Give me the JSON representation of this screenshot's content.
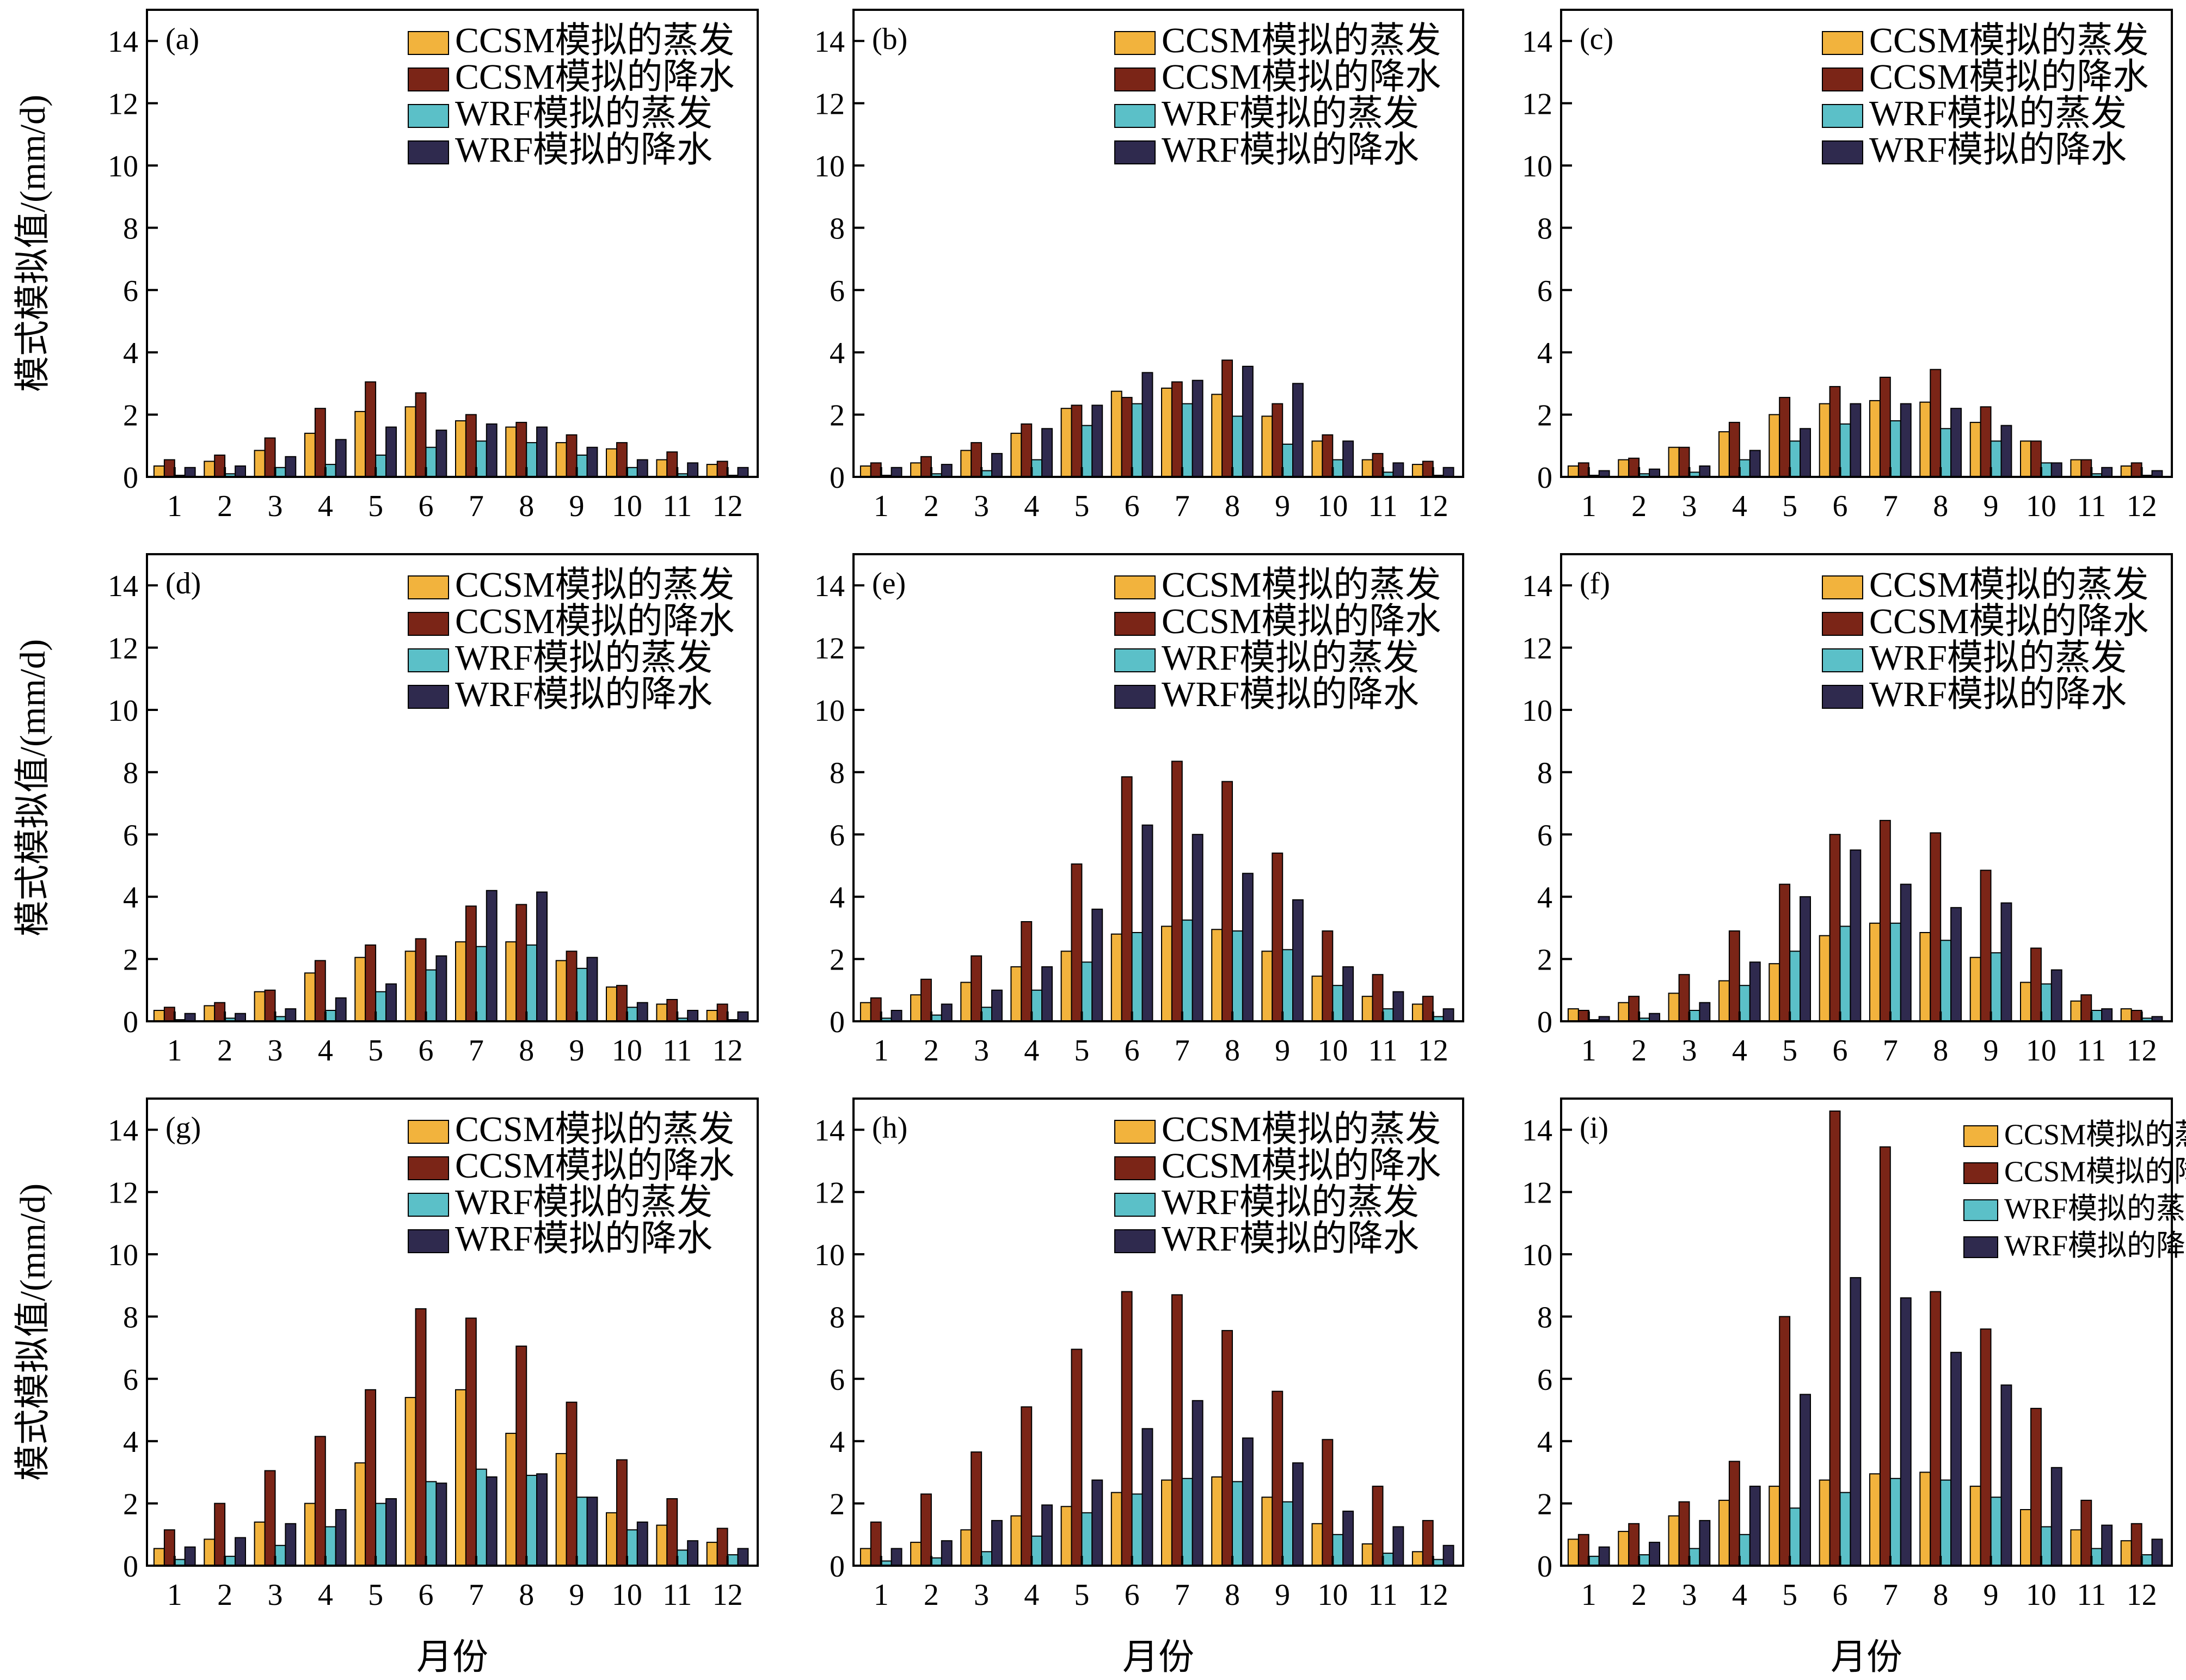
{
  "colors": {
    "ccsm_evap": "#F2B33D",
    "ccsm_precip": "#7B2517",
    "wrf_evap": "#5BC0C8",
    "wrf_precip": "#2F2A4E"
  },
  "common": {
    "ylabel": "模式模拟值/(mm/d)",
    "xlabel": "月份",
    "ylim": [
      0,
      15
    ],
    "yticks": [
      0,
      2,
      4,
      6,
      8,
      10,
      12,
      14
    ],
    "categories": [
      "1",
      "2",
      "3",
      "4",
      "5",
      "6",
      "7",
      "8",
      "9",
      "10",
      "11",
      "12"
    ],
    "legend": [
      "CCSM模拟的蒸发",
      "CCSM模拟的降水",
      "WRF模拟的蒸发",
      "WRF模拟的降水"
    ]
  },
  "chart_data": [
    {
      "type": "bar",
      "panel": "(a)",
      "series": [
        {
          "name": "CCSM模拟的蒸发",
          "values": [
            0.35,
            0.5,
            0.85,
            1.4,
            2.1,
            2.25,
            1.8,
            1.6,
            1.1,
            0.9,
            0.55,
            0.4
          ]
        },
        {
          "name": "CCSM模拟的降水",
          "values": [
            0.55,
            0.7,
            1.25,
            2.2,
            3.05,
            2.7,
            2.0,
            1.75,
            1.35,
            1.1,
            0.8,
            0.5
          ]
        },
        {
          "name": "WRF模拟的蒸发",
          "values": [
            0.05,
            0.1,
            0.3,
            0.4,
            0.7,
            0.95,
            1.15,
            1.1,
            0.7,
            0.3,
            0.1,
            0.05
          ]
        },
        {
          "name": "WRF模拟的降水",
          "values": [
            0.3,
            0.35,
            0.65,
            1.2,
            1.6,
            1.5,
            1.7,
            1.6,
            0.95,
            0.55,
            0.45,
            0.3
          ]
        }
      ]
    },
    {
      "type": "bar",
      "panel": "(b)",
      "series": [
        {
          "name": "CCSM模拟的蒸发",
          "values": [
            0.35,
            0.45,
            0.85,
            1.4,
            2.2,
            2.75,
            2.85,
            2.65,
            1.95,
            1.15,
            0.55,
            0.4
          ]
        },
        {
          "name": "CCSM模拟的降水",
          "values": [
            0.45,
            0.65,
            1.1,
            1.7,
            2.3,
            2.55,
            3.05,
            3.75,
            2.35,
            1.35,
            0.75,
            0.5
          ]
        },
        {
          "name": "WRF模拟的蒸发",
          "values": [
            0.05,
            0.1,
            0.2,
            0.55,
            1.65,
            2.35,
            2.35,
            1.95,
            1.05,
            0.55,
            0.15,
            0.05
          ]
        },
        {
          "name": "WRF模拟的降水",
          "values": [
            0.3,
            0.4,
            0.75,
            1.55,
            2.3,
            3.35,
            3.1,
            3.55,
            3.0,
            1.15,
            0.45,
            0.3
          ]
        }
      ]
    },
    {
      "type": "bar",
      "panel": "(c)",
      "series": [
        {
          "name": "CCSM模拟的蒸发",
          "values": [
            0.35,
            0.55,
            0.95,
            1.45,
            2.0,
            2.35,
            2.45,
            2.4,
            1.75,
            1.15,
            0.55,
            0.35
          ]
        },
        {
          "name": "CCSM模拟的降水",
          "values": [
            0.45,
            0.6,
            0.95,
            1.75,
            2.55,
            2.9,
            3.2,
            3.45,
            2.25,
            1.15,
            0.55,
            0.45
          ]
        },
        {
          "name": "WRF模拟的蒸发",
          "values": [
            0.05,
            0.1,
            0.15,
            0.55,
            1.15,
            1.7,
            1.8,
            1.55,
            1.15,
            0.45,
            0.1,
            0.05
          ]
        },
        {
          "name": "WRF模拟的降水",
          "values": [
            0.2,
            0.25,
            0.35,
            0.85,
            1.55,
            2.35,
            2.35,
            2.2,
            1.65,
            0.45,
            0.3,
            0.2
          ]
        }
      ]
    },
    {
      "type": "bar",
      "panel": "(d)",
      "series": [
        {
          "name": "CCSM模拟的蒸发",
          "values": [
            0.35,
            0.5,
            0.95,
            1.55,
            2.05,
            2.25,
            2.55,
            2.55,
            1.95,
            1.1,
            0.55,
            0.35
          ]
        },
        {
          "name": "CCSM模拟的降水",
          "values": [
            0.45,
            0.6,
            1.0,
            1.95,
            2.45,
            2.65,
            3.7,
            3.75,
            2.25,
            1.15,
            0.7,
            0.55
          ]
        },
        {
          "name": "WRF模拟的蒸发",
          "values": [
            0.05,
            0.1,
            0.15,
            0.35,
            0.95,
            1.65,
            2.4,
            2.45,
            1.7,
            0.45,
            0.1,
            0.05
          ]
        },
        {
          "name": "WRF模拟的降水",
          "values": [
            0.25,
            0.25,
            0.4,
            0.75,
            1.2,
            2.1,
            4.2,
            4.15,
            2.05,
            0.6,
            0.35,
            0.3
          ]
        }
      ]
    },
    {
      "type": "bar",
      "panel": "(e)",
      "series": [
        {
          "name": "CCSM模拟的蒸发",
          "values": [
            0.6,
            0.85,
            1.25,
            1.75,
            2.25,
            2.8,
            3.05,
            2.95,
            2.25,
            1.45,
            0.8,
            0.55
          ]
        },
        {
          "name": "CCSM模拟的降水",
          "values": [
            0.75,
            1.35,
            2.1,
            3.2,
            5.05,
            7.85,
            8.35,
            7.7,
            5.4,
            2.9,
            1.5,
            0.8
          ]
        },
        {
          "name": "WRF模拟的蒸发",
          "values": [
            0.1,
            0.2,
            0.45,
            1.0,
            1.9,
            2.85,
            3.25,
            2.9,
            2.3,
            1.15,
            0.4,
            0.15
          ]
        },
        {
          "name": "WRF模拟的降水",
          "values": [
            0.35,
            0.55,
            1.0,
            1.75,
            3.6,
            6.3,
            6.0,
            4.75,
            3.9,
            1.75,
            0.95,
            0.4
          ]
        }
      ]
    },
    {
      "type": "bar",
      "panel": "(f)",
      "series": [
        {
          "name": "CCSM模拟的蒸发",
          "values": [
            0.4,
            0.6,
            0.9,
            1.3,
            1.85,
            2.75,
            3.15,
            2.85,
            2.05,
            1.25,
            0.65,
            0.4
          ]
        },
        {
          "name": "CCSM模拟的降水",
          "values": [
            0.35,
            0.8,
            1.5,
            2.9,
            4.4,
            6.0,
            6.45,
            6.05,
            4.85,
            2.35,
            0.85,
            0.35
          ]
        },
        {
          "name": "WRF模拟的蒸发",
          "values": [
            0.05,
            0.1,
            0.35,
            1.15,
            2.25,
            3.05,
            3.15,
            2.6,
            2.2,
            1.2,
            0.35,
            0.1
          ]
        },
        {
          "name": "WRF模拟的降水",
          "values": [
            0.15,
            0.25,
            0.6,
            1.9,
            4.0,
            5.5,
            4.4,
            3.65,
            3.8,
            1.65,
            0.4,
            0.15
          ]
        }
      ]
    },
    {
      "type": "bar",
      "panel": "(g)",
      "series": [
        {
          "name": "CCSM模拟的蒸发",
          "values": [
            0.55,
            0.85,
            1.4,
            2.0,
            3.3,
            5.4,
            5.65,
            4.25,
            3.6,
            1.7,
            1.3,
            0.75
          ]
        },
        {
          "name": "CCSM模拟的降水",
          "values": [
            1.15,
            2.0,
            3.05,
            4.15,
            5.65,
            8.25,
            7.95,
            7.05,
            5.25,
            3.4,
            2.15,
            1.2
          ]
        },
        {
          "name": "WRF模拟的蒸发",
          "values": [
            0.2,
            0.3,
            0.65,
            1.25,
            2.0,
            2.7,
            3.1,
            2.9,
            2.2,
            1.15,
            0.5,
            0.35
          ]
        },
        {
          "name": "WRF模拟的降水",
          "values": [
            0.6,
            0.9,
            1.35,
            1.8,
            2.15,
            2.65,
            2.85,
            2.95,
            2.2,
            1.4,
            0.8,
            0.55
          ]
        }
      ]
    },
    {
      "type": "bar",
      "panel": "(h)",
      "series": [
        {
          "name": "CCSM模拟的蒸发",
          "values": [
            0.55,
            0.75,
            1.15,
            1.6,
            1.9,
            2.35,
            2.75,
            2.85,
            2.2,
            1.35,
            0.7,
            0.45
          ]
        },
        {
          "name": "CCSM模拟的降水",
          "values": [
            1.4,
            2.3,
            3.65,
            5.1,
            6.95,
            8.8,
            8.7,
            7.55,
            5.6,
            4.05,
            2.55,
            1.45
          ]
        },
        {
          "name": "WRF模拟的蒸发",
          "values": [
            0.15,
            0.25,
            0.45,
            0.95,
            1.7,
            2.3,
            2.8,
            2.7,
            2.05,
            1.0,
            0.4,
            0.2
          ]
        },
        {
          "name": "WRF模拟的降水",
          "values": [
            0.55,
            0.8,
            1.45,
            1.95,
            2.75,
            4.4,
            5.3,
            4.1,
            3.3,
            1.75,
            1.25,
            0.65
          ]
        }
      ]
    },
    {
      "type": "bar",
      "panel": "(i)",
      "series": [
        {
          "name": "CCSM模拟的蒸发",
          "values": [
            0.85,
            1.1,
            1.6,
            2.1,
            2.55,
            2.75,
            2.95,
            3.0,
            2.55,
            1.8,
            1.15,
            0.8
          ]
        },
        {
          "name": "CCSM模拟的降水",
          "values": [
            1.0,
            1.35,
            2.05,
            3.35,
            8.0,
            14.6,
            13.45,
            8.8,
            7.6,
            5.05,
            2.1,
            1.35
          ]
        },
        {
          "name": "WRF模拟的蒸发",
          "values": [
            0.3,
            0.35,
            0.55,
            1.0,
            1.85,
            2.35,
            2.8,
            2.75,
            2.2,
            1.25,
            0.55,
            0.35
          ]
        },
        {
          "name": "WRF模拟的降水",
          "values": [
            0.6,
            0.75,
            1.45,
            2.55,
            5.5,
            9.25,
            8.6,
            6.85,
            5.8,
            3.15,
            1.3,
            0.85
          ]
        }
      ]
    }
  ]
}
